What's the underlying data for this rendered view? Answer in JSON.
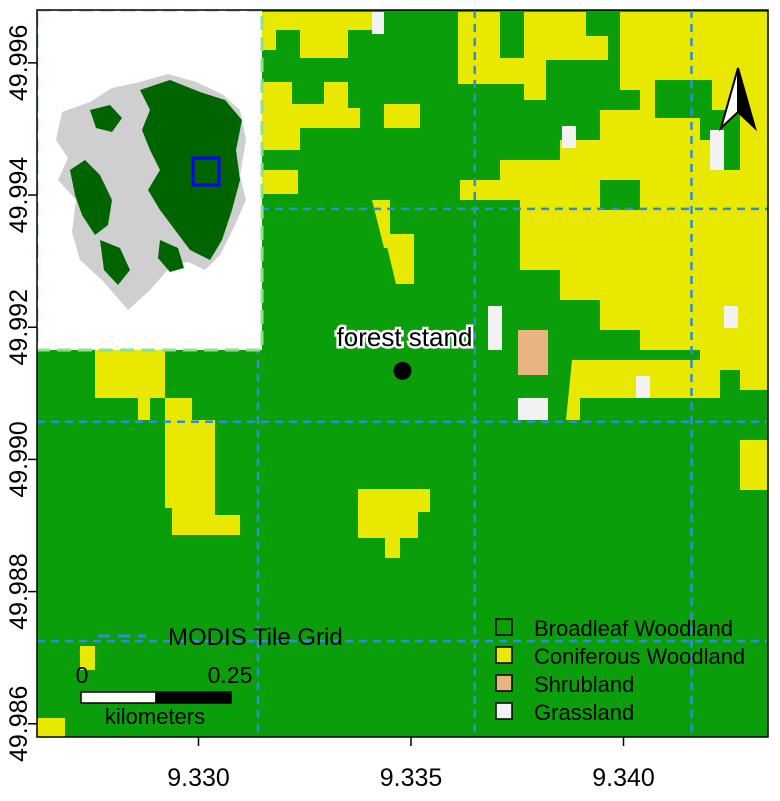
{
  "chart_data": {
    "type": "heatmap",
    "x_ticks": [
      "9.330",
      "9.335",
      "9.340"
    ],
    "y_ticks": [
      "49.986",
      "49.988",
      "49.990",
      "49.992",
      "49.994",
      "49.996"
    ],
    "x_range": [
      9.3262,
      9.3434
    ],
    "y_range": [
      49.9858,
      49.9968
    ],
    "categories": [
      {
        "name": "Broadleaf Woodland",
        "color": "#0a9e0a"
      },
      {
        "name": "Coniferous Woodland",
        "color": "#e8e800"
      },
      {
        "name": "Shrubland",
        "color": "#e8b482"
      },
      {
        "name": "Grassland",
        "color": "#f2f2f2"
      }
    ],
    "modis_grid": {
      "label": "MODIS Tile Grid",
      "color": "#2f8fd4",
      "x": [
        9.3314,
        9.3365,
        9.3416
      ],
      "y": [
        49.98725,
        49.99057,
        49.99379
      ]
    },
    "marker": {
      "label": "forest stand",
      "x": 9.3348,
      "y": 49.99134
    },
    "scale_bar": {
      "start_label": "0",
      "end_label": "0.25",
      "unit_label": "kilometers"
    }
  },
  "inset": {
    "frame_color": "#90e090",
    "region_color": "#006400",
    "other_color": "#cfcfcf",
    "box_color": "#0000ff"
  },
  "north_arrow": {
    "icon": "north-arrow-icon"
  }
}
